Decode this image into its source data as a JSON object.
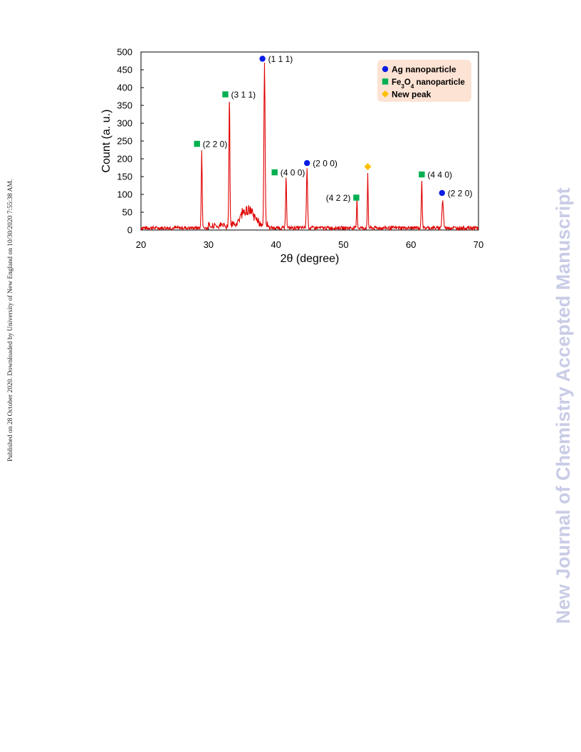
{
  "side_note": "Published on 28 October 2020. Downloaded by University of New England on 10/30/2020 7:55:38 AM.",
  "watermark": "New Journal of Chemistry Accepted Manuscript",
  "colors": {
    "line": "#e00000",
    "ag": "#0a1ee6",
    "fe3o4": "#00b050",
    "new": "#ffc000",
    "legend_bg": "#fde3d4"
  },
  "chart_data": {
    "type": "line",
    "xlabel": "2θ (degree)",
    "ylabel": "Count (a. u.)",
    "xlim": [
      20,
      70
    ],
    "ylim": [
      0,
      500
    ],
    "xticks": [
      20,
      30,
      40,
      50,
      60,
      70
    ],
    "yticks": [
      0,
      50,
      100,
      150,
      200,
      250,
      300,
      350,
      400,
      450,
      500
    ],
    "grid": false,
    "legend": {
      "position": "top-right",
      "entries": [
        {
          "key": "ag",
          "label": "Ag nanoparticle",
          "marker": "circle"
        },
        {
          "key": "fe3o4",
          "label_main": "Fe",
          "sub1": "3",
          "label_mid": "O",
          "sub2": "4",
          "label_end": " nanoparticle",
          "marker": "square"
        },
        {
          "key": "new",
          "label": "New peak",
          "marker": "diamond"
        }
      ]
    },
    "peaks": [
      {
        "x": 29.0,
        "y": 220,
        "width": 0.1
      },
      {
        "x": 33.1,
        "y": 360,
        "width": 0.1
      },
      {
        "x": 38.3,
        "y": 460,
        "width": 0.12
      },
      {
        "x": 41.5,
        "y": 147,
        "width": 0.1
      },
      {
        "x": 44.6,
        "y": 170,
        "width": 0.12
      },
      {
        "x": 52.0,
        "y": 92,
        "width": 0.08
      },
      {
        "x": 53.6,
        "y": 160,
        "width": 0.08
      },
      {
        "x": 61.6,
        "y": 138,
        "width": 0.1
      },
      {
        "x": 64.7,
        "y": 83,
        "width": 0.15
      }
    ],
    "broad_hump": {
      "x": 35.8,
      "y": 50,
      "width": 1.3
    },
    "baseline": 6,
    "annotations": [
      {
        "type": "fe3o4",
        "label": "(2 2 0)",
        "marker_x": 28.3,
        "marker_y": 242,
        "side": "right"
      },
      {
        "type": "fe3o4",
        "label": "(3 1 1)",
        "marker_x": 32.5,
        "marker_y": 381,
        "side": "right"
      },
      {
        "type": "ag",
        "label": "(1 1 1)",
        "marker_x": 38.0,
        "marker_y": 481,
        "side": "right"
      },
      {
        "type": "fe3o4",
        "label": "(4 0 0)",
        "marker_x": 39.8,
        "marker_y": 162,
        "side": "right"
      },
      {
        "type": "ag",
        "label": "(2 0 0)",
        "marker_x": 44.6,
        "marker_y": 188,
        "side": "right"
      },
      {
        "type": "fe3o4",
        "label": "(4 2 2)",
        "marker_x": 51.9,
        "marker_y": 91,
        "side": "left"
      },
      {
        "type": "new",
        "label": "",
        "marker_x": 53.6,
        "marker_y": 178,
        "side": "right"
      },
      {
        "type": "fe3o4",
        "label": "(4 4 0)",
        "marker_x": 61.6,
        "marker_y": 156,
        "side": "right"
      },
      {
        "type": "ag",
        "label": "(2 2 0)",
        "marker_x": 64.6,
        "marker_y": 104,
        "side": "right"
      }
    ]
  }
}
